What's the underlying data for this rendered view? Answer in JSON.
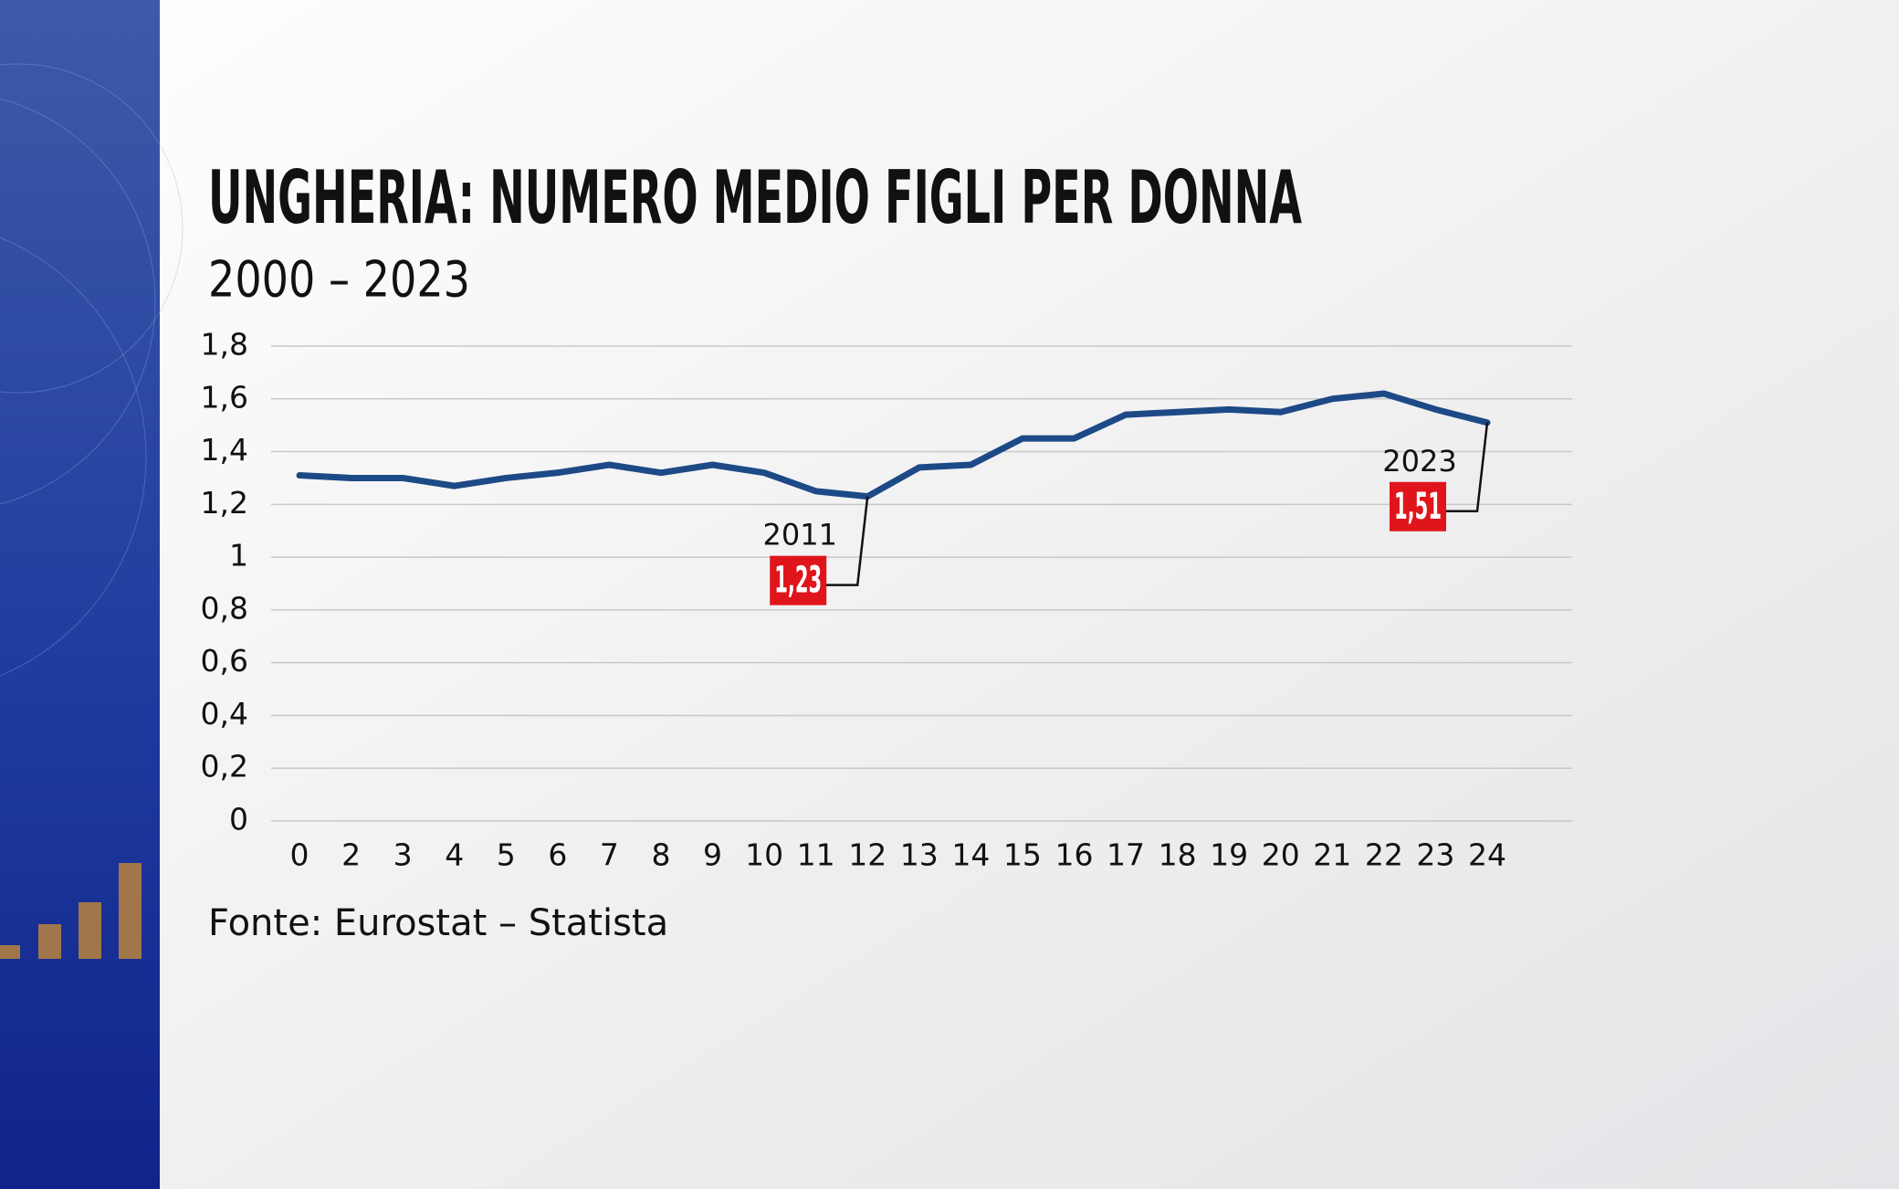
{
  "chart_data": {
    "type": "line",
    "title": "UNGHERIA: NUMERO MEDIO FIGLI PER DONNA",
    "subtitle": "2000 – 2023",
    "source": "Fonte:  Eurostat – Statista",
    "categories": [
      "0",
      "2",
      "3",
      "4",
      "5",
      "6",
      "7",
      "8",
      "9",
      "10",
      "11",
      "12",
      "13",
      "14",
      "15",
      "16",
      "17",
      "18",
      "19",
      "20",
      "21",
      "22",
      "23",
      "24"
    ],
    "values": [
      1.31,
      1.3,
      1.3,
      1.27,
      1.3,
      1.32,
      1.35,
      1.32,
      1.35,
      1.32,
      1.25,
      1.23,
      1.34,
      1.35,
      1.45,
      1.45,
      1.54,
      1.55,
      1.56,
      1.55,
      1.6,
      1.62,
      1.56,
      1.51
    ],
    "value_labels": [
      null,
      null,
      null,
      null,
      null,
      null,
      null,
      null,
      null,
      null,
      null,
      "1,23",
      null,
      null,
      null,
      null,
      null,
      null,
      null,
      null,
      null,
      null,
      null,
      "1,51"
    ],
    "annotations": [
      "2011",
      "2023"
    ],
    "color": "#1d4a86",
    "label_color": "#e0151b",
    "ylim": [
      0,
      1.8
    ],
    "yticks": [
      0,
      {
        "value": 0.2,
        "label": "0,2"
      },
      {
        "value": 0.4,
        "label": "0,4"
      },
      {
        "value": 0.6,
        "label": "0,6"
      },
      {
        "value": 0.8,
        "label": "0,8"
      },
      1,
      {
        "value": 1.2,
        "label": "1,2"
      },
      {
        "value": 1.4,
        "label": "1,4"
      },
      {
        "value": 1.6,
        "label": "1,6"
      },
      {
        "value": 1.8,
        "label": "1,8"
      }
    ],
    "grid": true
  }
}
